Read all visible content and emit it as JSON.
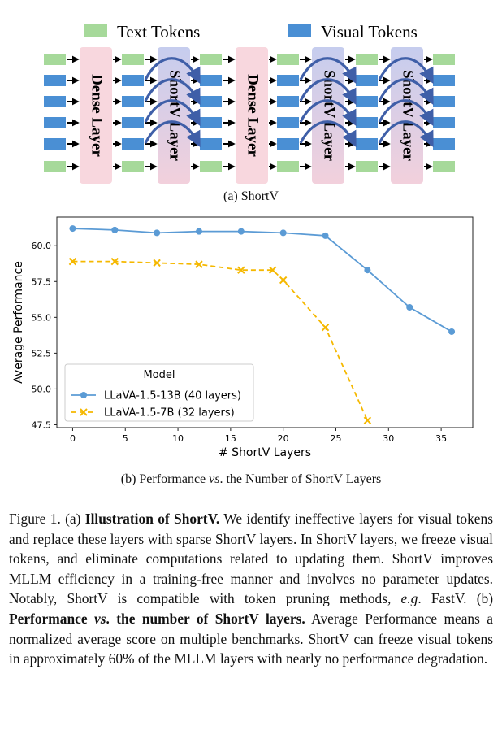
{
  "figure_a": {
    "legend": {
      "text_tokens": "Text Tokens",
      "visual_tokens": "Visual Tokens"
    },
    "layers": [
      {
        "kind": "dense",
        "label": "Dense Layer"
      },
      {
        "kind": "shortv",
        "label": "ShortV Layer"
      },
      {
        "kind": "dense",
        "label": "Dense Layer"
      },
      {
        "kind": "shortv",
        "label": "ShortV Layer"
      },
      {
        "kind": "shortv",
        "label": "ShortV Layer"
      }
    ],
    "token_rows": [
      "text",
      "visual",
      "visual",
      "visual",
      "visual",
      "text"
    ],
    "colors": {
      "text": "#a6d99a",
      "visual": "#4a8fd4",
      "dense": "#f8d7de",
      "shortv_top": "#c6cdee",
      "shortv_bottom": "#f2d0dc",
      "arrow": "#3f5fa8"
    },
    "caption": "(a) ShortV"
  },
  "figure_b": {
    "caption_parts": {
      "p1": "(b) Performance ",
      "vs": "vs",
      "p2": ". the Number of ShortV Layers"
    }
  },
  "chart_data": {
    "type": "line",
    "xlabel": "# ShortV Layers",
    "ylabel": "Average Performance",
    "xlim": [
      -1.5,
      38
    ],
    "ylim": [
      47.3,
      62.0
    ],
    "xticks": [
      "0",
      "5",
      "10",
      "15",
      "20",
      "25",
      "30",
      "35"
    ],
    "yticks": [
      "47.5",
      "50.0",
      "52.5",
      "55.0",
      "57.5",
      "60.0"
    ],
    "legend": {
      "title": "Model",
      "position": "lower-left"
    },
    "grid": false,
    "series": [
      {
        "name": "LLaVA-1.5-13B (40 layers)",
        "color": "#5b9bd5",
        "marker": "circle",
        "line": "solid",
        "x": [
          0,
          4,
          8,
          12,
          16,
          20,
          24,
          28,
          32,
          36
        ],
        "y": [
          61.2,
          61.1,
          60.9,
          61.0,
          61.0,
          60.9,
          60.7,
          58.3,
          55.7,
          54.0
        ]
      },
      {
        "name": "LLaVA-1.5-7B (32 layers)",
        "color": "#f5b800",
        "marker": "x",
        "line": "dashed",
        "x": [
          0,
          4,
          8,
          12,
          16,
          19,
          20,
          24,
          28
        ],
        "y": [
          58.9,
          58.9,
          58.8,
          58.7,
          58.3,
          58.3,
          57.6,
          54.3,
          47.8
        ]
      }
    ]
  },
  "figure_caption": {
    "label": "Figure 1. (a) ",
    "bold1": "Illustration of ShortV.",
    "text1": " We identify ineffective layers for visual tokens and replace these layers with sparse ShortV layers. In ShortV layers, we freeze visual tokens, and eliminate computations related to updating them. ShortV improves MLLM efficiency in a training-free manner and involves no parameter updates. Notably, ShortV is compatible with token pruning methods, ",
    "eg": "e.g",
    "text2": ". FastV. (b) ",
    "bold2a": "Performance ",
    "bold2_vs": "vs",
    "bold2b": ". the number of ShortV layers.",
    "text3": " Average Performance means a normalized average score on multiple benchmarks. ShortV can freeze visual tokens in approximately 60% of the MLLM layers with nearly no performance degradation."
  }
}
